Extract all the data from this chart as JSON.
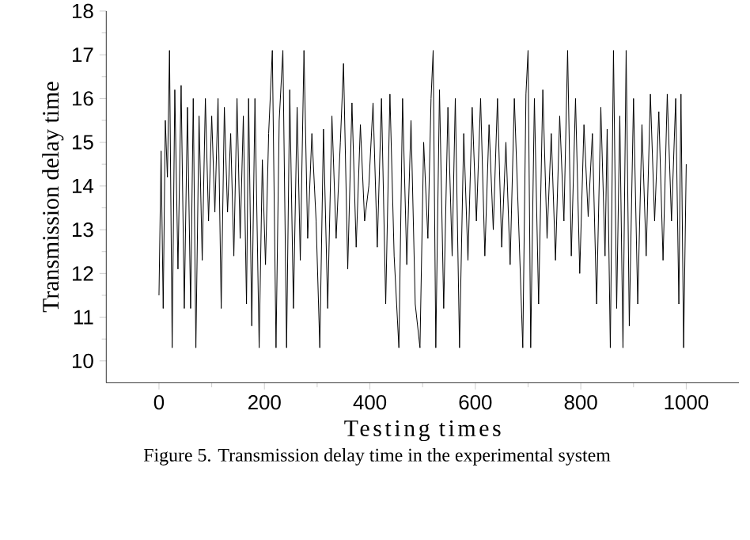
{
  "chart_data": {
    "type": "line",
    "xlabel": "Testing times",
    "ylabel": "Transmission delay time",
    "annotations": [
      "Figure 5. Transmission delay time in the experimental system"
    ],
    "xlim": [
      -100,
      1100
    ],
    "ylim": [
      9.5,
      18
    ],
    "xticks": [
      0,
      200,
      400,
      600,
      800,
      1000
    ],
    "yticks": [
      10,
      11,
      12,
      13,
      14,
      15,
      16,
      17,
      18
    ],
    "color": "#000000",
    "marker": "none",
    "line_style": "solid",
    "x": [
      0,
      4,
      8,
      12,
      16,
      20,
      25,
      30,
      36,
      42,
      48,
      54,
      60,
      65,
      70,
      76,
      82,
      88,
      94,
      100,
      106,
      112,
      118,
      124,
      130,
      136,
      142,
      148,
      154,
      160,
      166,
      170,
      176,
      182,
      190,
      196,
      202,
      208,
      215,
      222,
      228,
      235,
      242,
      248,
      255,
      262,
      268,
      275,
      282,
      290,
      298,
      305,
      312,
      320,
      328,
      336,
      344,
      350,
      358,
      366,
      374,
      382,
      390,
      398,
      406,
      414,
      422,
      430,
      438,
      446,
      455,
      462,
      470,
      478,
      486,
      495,
      502,
      510,
      516,
      520,
      525,
      532,
      540,
      548,
      556,
      562,
      570,
      578,
      586,
      594,
      602,
      610,
      618,
      626,
      634,
      642,
      650,
      658,
      666,
      674,
      682,
      690,
      696,
      700,
      705,
      712,
      720,
      728,
      736,
      744,
      752,
      760,
      768,
      775,
      782,
      790,
      798,
      806,
      814,
      822,
      830,
      838,
      846,
      850,
      856,
      862,
      868,
      874,
      880,
      886,
      892,
      900,
      908,
      916,
      924,
      932,
      940,
      948,
      956,
      964,
      972,
      980,
      986,
      990,
      995,
      1000
    ],
    "values": [
      11.5,
      14.8,
      11.2,
      15.5,
      14.2,
      17.1,
      10.3,
      16.2,
      12.1,
      16.3,
      11.2,
      15.8,
      11.2,
      16.0,
      10.3,
      15.6,
      12.3,
      16.0,
      13.2,
      15.6,
      13.4,
      16.0,
      11.2,
      15.8,
      13.4,
      15.2,
      12.4,
      16.0,
      12.8,
      15.6,
      11.3,
      16.0,
      10.8,
      16.0,
      10.3,
      14.6,
      12.2,
      15.2,
      17.1,
      10.3,
      15.5,
      17.1,
      10.3,
      16.2,
      11.2,
      15.8,
      12.3,
      17.1,
      12.8,
      15.2,
      13.2,
      10.3,
      15.3,
      11.2,
      15.6,
      12.8,
      15.0,
      16.8,
      12.1,
      15.9,
      12.6,
      15.4,
      13.2,
      14.0,
      15.9,
      12.6,
      16.0,
      11.3,
      16.1,
      12.4,
      10.3,
      16.0,
      12.2,
      15.5,
      11.3,
      10.3,
      15.0,
      12.8,
      16.0,
      17.1,
      10.3,
      16.2,
      11.2,
      15.8,
      12.4,
      16.0,
      10.3,
      15.2,
      12.3,
      15.8,
      13.2,
      16.0,
      12.4,
      15.4,
      13.0,
      16.0,
      12.6,
      15.0,
      12.2,
      16.0,
      13.2,
      10.3,
      16.1,
      17.1,
      10.3,
      16.0,
      11.3,
      16.2,
      12.8,
      15.2,
      12.3,
      15.6,
      13.2,
      17.1,
      12.4,
      16.0,
      12.0,
      15.4,
      13.3,
      15.2,
      11.3,
      15.8,
      12.4,
      15.3,
      10.3,
      17.1,
      11.2,
      15.6,
      10.3,
      17.1,
      10.8,
      16.0,
      11.3,
      15.4,
      12.4,
      16.1,
      13.2,
      15.7,
      12.3,
      16.1,
      13.2,
      16.0,
      11.3,
      16.1,
      10.3,
      14.5
    ]
  }
}
